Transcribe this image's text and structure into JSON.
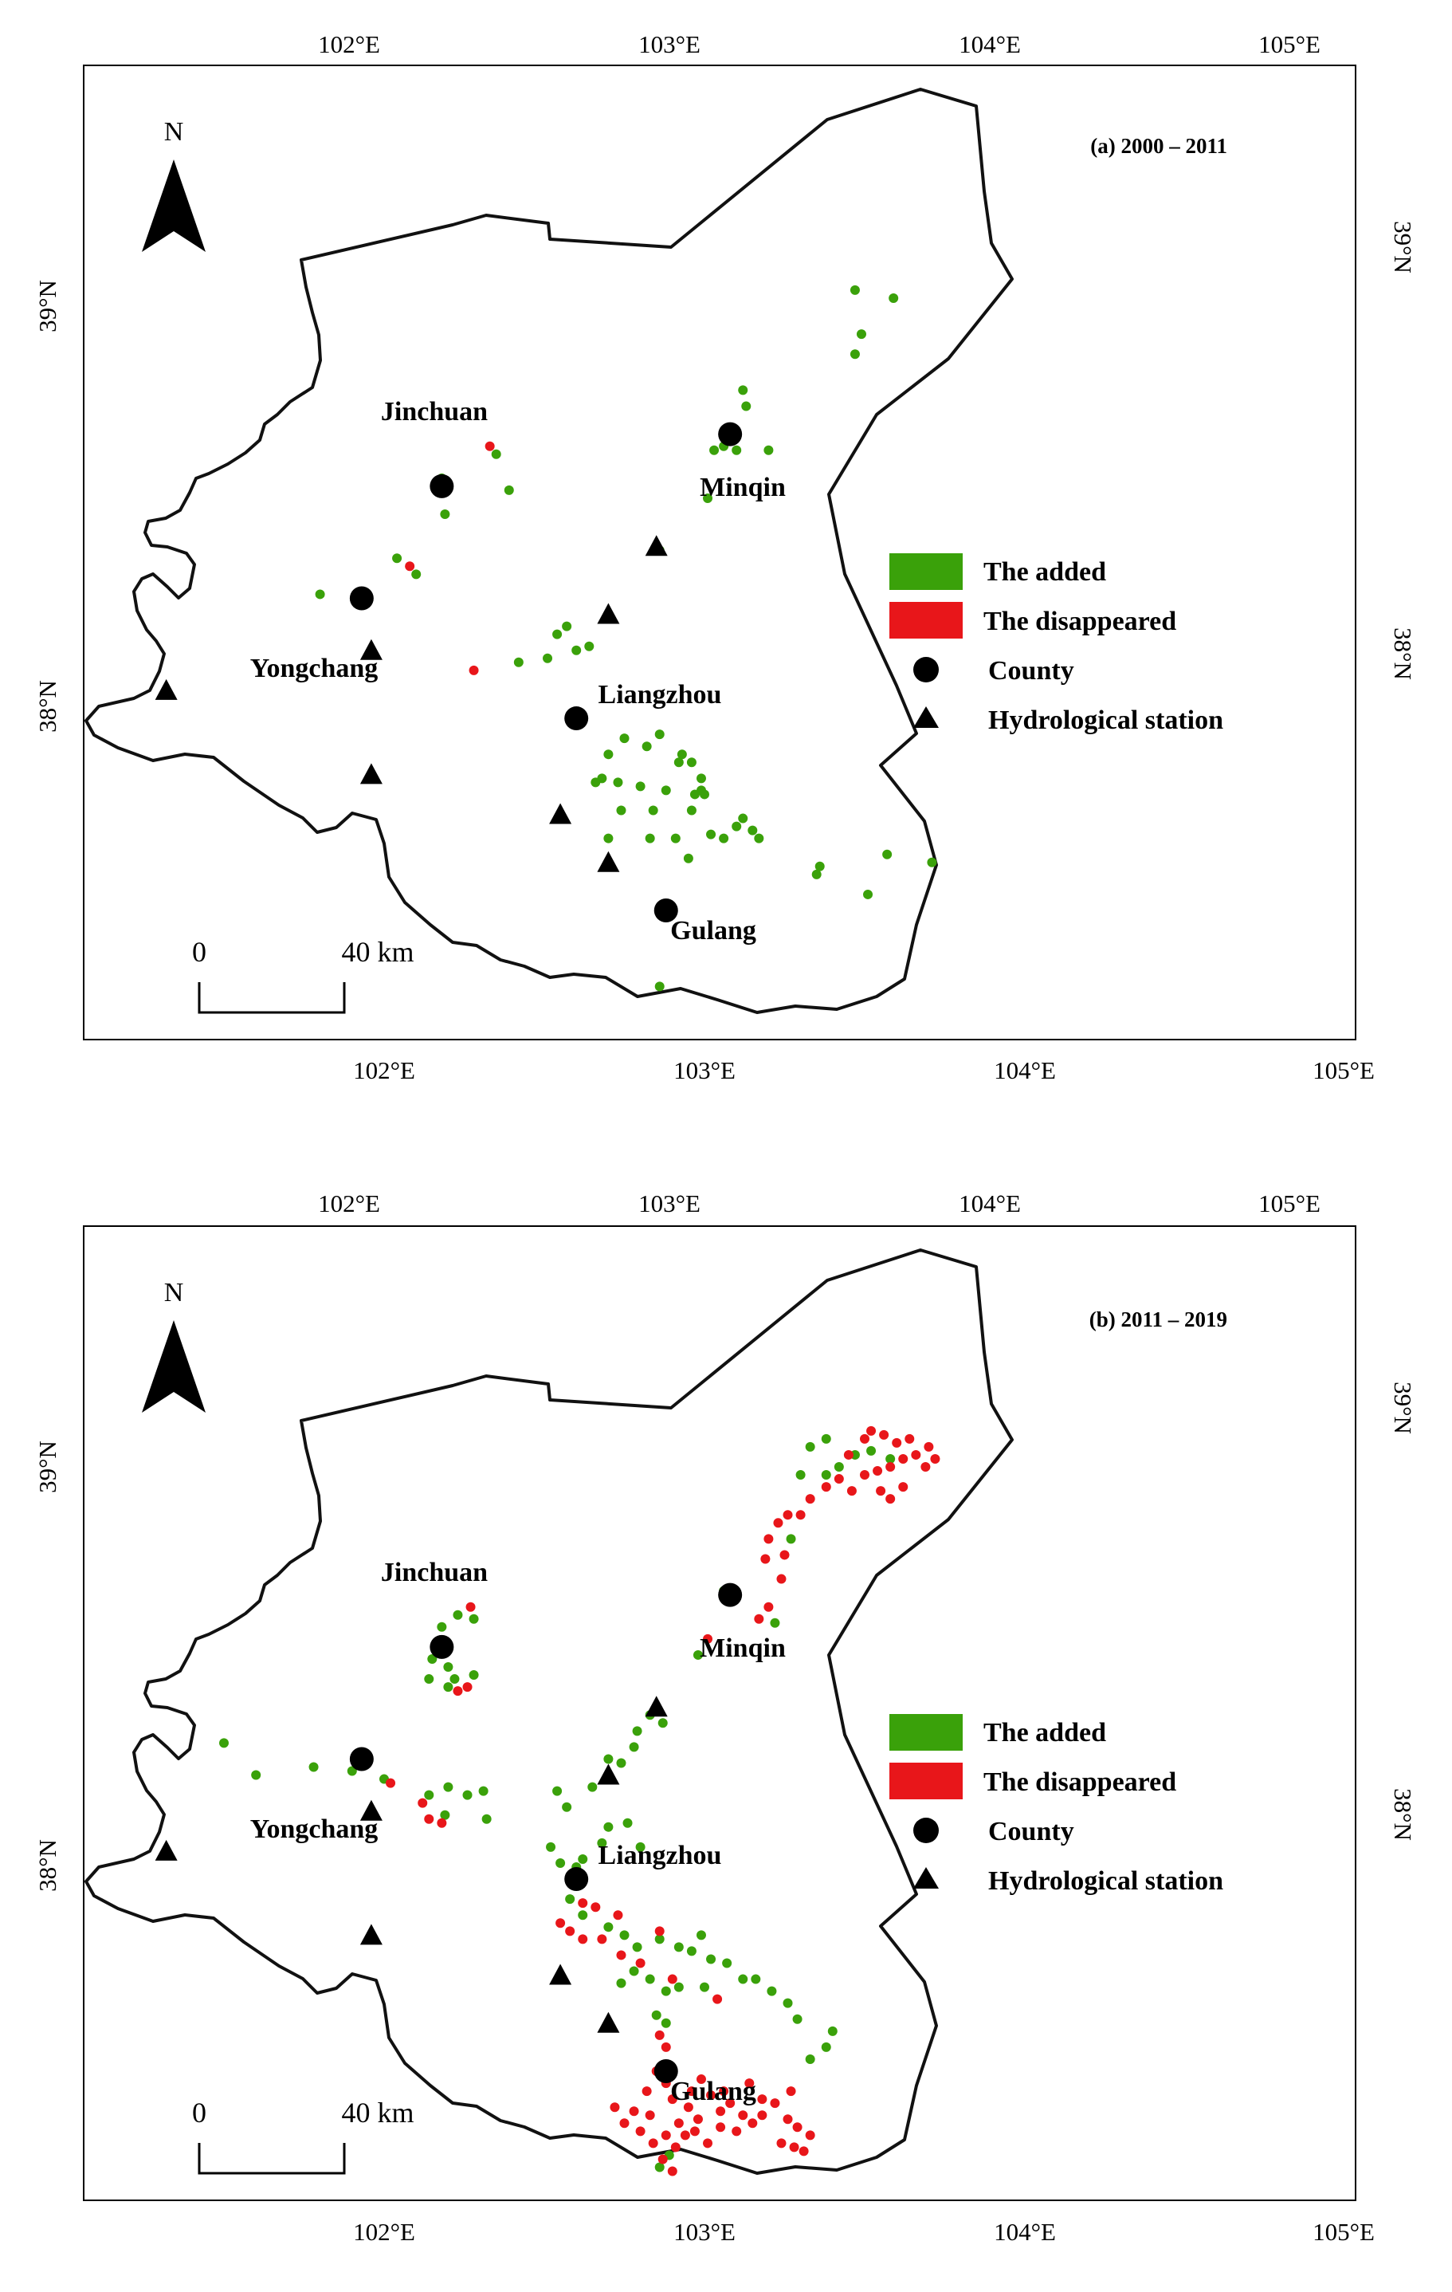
{
  "panels": [
    {
      "id": "a",
      "title": "(a) 2000 – 2011",
      "lon_ticks": [
        "102°E",
        "103°E",
        "104°E",
        "105°E"
      ],
      "lat_ticks": [
        "38°N",
        "39°N"
      ],
      "north_label": "N",
      "scale": {
        "zero": "0",
        "end": "40 km"
      },
      "legend": [
        {
          "kind": "patch",
          "color": "#3aa10a",
          "label": "The added"
        },
        {
          "kind": "patch",
          "color": "#e8161a",
          "label": "The disappeared"
        },
        {
          "kind": "circle",
          "color": "#000000",
          "label": "County"
        },
        {
          "kind": "triangle",
          "color": "#000000",
          "label": "Hydrological station"
        }
      ],
      "places": [
        {
          "name": "Jinchuan",
          "lon": 102.18,
          "lat": 38.55
        },
        {
          "name": "Minqin",
          "lon": 103.08,
          "lat": 38.68
        },
        {
          "name": "Yongchang",
          "lon": 101.93,
          "lat": 38.27
        },
        {
          "name": "Liangzhou",
          "lon": 102.6,
          "lat": 37.97
        },
        {
          "name": "Gulang",
          "lon": 102.88,
          "lat": 37.49
        }
      ],
      "stations": [
        {
          "lon": 101.32,
          "lat": 38.04
        },
        {
          "lon": 101.96,
          "lat": 38.14
        },
        {
          "lon": 101.96,
          "lat": 37.83
        },
        {
          "lon": 102.55,
          "lat": 37.73
        },
        {
          "lon": 102.7,
          "lat": 37.61
        },
        {
          "lon": 102.7,
          "lat": 38.23
        },
        {
          "lon": 102.85,
          "lat": 38.4
        }
      ],
      "added_points": [
        [
          102.18,
          38.57
        ],
        [
          102.19,
          38.48
        ],
        [
          102.35,
          38.63
        ],
        [
          102.39,
          38.54
        ],
        [
          102.1,
          38.33
        ],
        [
          102.04,
          38.37
        ],
        [
          101.8,
          38.28
        ],
        [
          102.42,
          38.11
        ],
        [
          102.51,
          38.12
        ],
        [
          102.54,
          38.18
        ],
        [
          102.6,
          38.14
        ],
        [
          102.64,
          38.15
        ],
        [
          102.57,
          38.2
        ],
        [
          102.75,
          37.92
        ],
        [
          102.7,
          37.88
        ],
        [
          102.68,
          37.82
        ],
        [
          102.73,
          37.81
        ],
        [
          102.82,
          37.9
        ],
        [
          102.86,
          37.93
        ],
        [
          102.93,
          37.88
        ],
        [
          102.96,
          37.86
        ],
        [
          102.99,
          37.82
        ],
        [
          102.99,
          37.79
        ],
        [
          102.97,
          37.78
        ],
        [
          102.8,
          37.8
        ],
        [
          102.74,
          37.74
        ],
        [
          102.84,
          37.74
        ],
        [
          102.96,
          37.74
        ],
        [
          102.91,
          37.67
        ],
        [
          102.95,
          37.62
        ],
        [
          103.02,
          37.68
        ],
        [
          103.06,
          37.67
        ],
        [
          103.1,
          37.7
        ],
        [
          103.12,
          37.72
        ],
        [
          103.15,
          37.69
        ],
        [
          103.17,
          37.67
        ],
        [
          103.0,
          37.78
        ],
        [
          102.92,
          37.86
        ],
        [
          102.88,
          37.79
        ],
        [
          102.83,
          37.67
        ],
        [
          102.7,
          37.67
        ],
        [
          102.66,
          37.81
        ],
        [
          103.35,
          37.58
        ],
        [
          103.36,
          37.6
        ],
        [
          103.51,
          37.53
        ],
        [
          103.57,
          37.63
        ],
        [
          103.71,
          37.61
        ],
        [
          102.86,
          37.3
        ],
        [
          103.03,
          38.64
        ],
        [
          103.06,
          38.65
        ],
        [
          103.1,
          38.64
        ],
        [
          103.2,
          38.64
        ],
        [
          103.13,
          38.75
        ],
        [
          103.12,
          38.79
        ],
        [
          103.01,
          38.52
        ],
        [
          102.86,
          38.39
        ],
        [
          103.47,
          38.88
        ],
        [
          103.49,
          38.93
        ],
        [
          103.47,
          39.04
        ],
        [
          103.59,
          39.02
        ]
      ],
      "disappeared_points": [
        [
          102.33,
          38.65
        ],
        [
          102.08,
          38.35
        ],
        [
          102.28,
          38.09
        ]
      ]
    },
    {
      "id": "b",
      "title": "(b) 2011 – 2019",
      "lon_ticks": [
        "102°E",
        "103°E",
        "104°E",
        "105°E"
      ],
      "lat_ticks": [
        "38°N",
        "39°N"
      ],
      "north_label": "N",
      "scale": {
        "zero": "0",
        "end": "40 km"
      },
      "legend": [
        {
          "kind": "patch",
          "color": "#3aa10a",
          "label": "The added"
        },
        {
          "kind": "patch",
          "color": "#e8161a",
          "label": "The disappeared"
        },
        {
          "kind": "circle",
          "color": "#000000",
          "label": "County"
        },
        {
          "kind": "triangle",
          "color": "#000000",
          "label": "Hydrological station"
        }
      ],
      "places": [
        {
          "name": "Jinchuan",
          "lon": 102.18,
          "lat": 38.55
        },
        {
          "name": "Minqin",
          "lon": 103.08,
          "lat": 38.68
        },
        {
          "name": "Yongchang",
          "lon": 101.93,
          "lat": 38.27
        },
        {
          "name": "Liangzhou",
          "lon": 102.6,
          "lat": 37.97
        },
        {
          "name": "Gulang",
          "lon": 102.88,
          "lat": 37.49
        }
      ],
      "stations": [
        {
          "lon": 101.32,
          "lat": 38.04
        },
        {
          "lon": 101.96,
          "lat": 38.14
        },
        {
          "lon": 101.96,
          "lat": 37.83
        },
        {
          "lon": 102.55,
          "lat": 37.73
        },
        {
          "lon": 102.7,
          "lat": 37.61
        },
        {
          "lon": 102.7,
          "lat": 38.23
        },
        {
          "lon": 102.85,
          "lat": 38.4
        }
      ],
      "added_points": [
        [
          101.5,
          38.31
        ],
        [
          101.6,
          38.23
        ],
        [
          101.78,
          38.25
        ],
        [
          101.9,
          38.24
        ],
        [
          102.0,
          38.22
        ],
        [
          102.15,
          38.52
        ],
        [
          102.18,
          38.54
        ],
        [
          102.2,
          38.5
        ],
        [
          102.22,
          38.47
        ],
        [
          102.2,
          38.45
        ],
        [
          102.14,
          38.47
        ],
        [
          102.28,
          38.48
        ],
        [
          102.23,
          38.63
        ],
        [
          102.28,
          38.62
        ],
        [
          102.18,
          38.6
        ],
        [
          102.2,
          38.2
        ],
        [
          102.26,
          38.18
        ],
        [
          102.31,
          38.19
        ],
        [
          102.14,
          38.18
        ],
        [
          102.19,
          38.13
        ],
        [
          102.32,
          38.12
        ],
        [
          102.54,
          38.19
        ],
        [
          102.57,
          38.15
        ],
        [
          102.52,
          38.05
        ],
        [
          102.55,
          38.01
        ],
        [
          102.6,
          38.0
        ],
        [
          102.62,
          38.02
        ],
        [
          102.68,
          38.06
        ],
        [
          102.7,
          38.1
        ],
        [
          102.76,
          38.11
        ],
        [
          102.8,
          38.05
        ],
        [
          102.65,
          38.2
        ],
        [
          102.7,
          38.27
        ],
        [
          102.74,
          38.26
        ],
        [
          102.78,
          38.3
        ],
        [
          102.79,
          38.34
        ],
        [
          102.83,
          38.38
        ],
        [
          102.87,
          38.36
        ],
        [
          102.58,
          37.92
        ],
        [
          102.62,
          37.88
        ],
        [
          102.7,
          37.85
        ],
        [
          102.75,
          37.83
        ],
        [
          102.79,
          37.8
        ],
        [
          102.86,
          37.82
        ],
        [
          102.92,
          37.8
        ],
        [
          102.96,
          37.79
        ],
        [
          102.99,
          37.83
        ],
        [
          103.02,
          37.77
        ],
        [
          103.07,
          37.76
        ],
        [
          103.12,
          37.72
        ],
        [
          103.16,
          37.72
        ],
        [
          103.21,
          37.69
        ],
        [
          103.26,
          37.66
        ],
        [
          103.29,
          37.62
        ],
        [
          102.78,
          37.74
        ],
        [
          102.83,
          37.72
        ],
        [
          102.88,
          37.69
        ],
        [
          102.92,
          37.7
        ],
        [
          103.0,
          37.7
        ],
        [
          102.74,
          37.71
        ],
        [
          102.85,
          37.63
        ],
        [
          102.88,
          37.61
        ],
        [
          103.33,
          37.52
        ],
        [
          103.38,
          37.55
        ],
        [
          103.4,
          37.59
        ],
        [
          102.86,
          37.25
        ],
        [
          102.89,
          37.28
        ],
        [
          103.06,
          38.69
        ],
        [
          103.09,
          38.67
        ],
        [
          102.98,
          38.53
        ],
        [
          103.22,
          38.61
        ],
        [
          103.27,
          38.82
        ],
        [
          103.38,
          38.98
        ],
        [
          103.42,
          39.0
        ],
        [
          103.47,
          39.03
        ],
        [
          103.52,
          39.04
        ],
        [
          103.58,
          39.02
        ],
        [
          103.33,
          39.05
        ],
        [
          103.38,
          39.07
        ],
        [
          103.3,
          38.98
        ]
      ],
      "disappeared_points": [
        [
          102.23,
          38.44
        ],
        [
          102.26,
          38.45
        ],
        [
          102.27,
          38.65
        ],
        [
          102.02,
          38.21
        ],
        [
          102.12,
          38.16
        ],
        [
          102.14,
          38.12
        ],
        [
          102.18,
          38.11
        ],
        [
          102.62,
          37.91
        ],
        [
          102.66,
          37.9
        ],
        [
          102.73,
          37.88
        ],
        [
          102.55,
          37.86
        ],
        [
          102.58,
          37.84
        ],
        [
          102.62,
          37.82
        ],
        [
          102.68,
          37.82
        ],
        [
          102.74,
          37.78
        ],
        [
          102.8,
          37.76
        ],
        [
          102.86,
          37.84
        ],
        [
          102.9,
          37.72
        ],
        [
          103.04,
          37.67
        ],
        [
          103.01,
          38.57
        ],
        [
          103.17,
          38.62
        ],
        [
          103.2,
          38.65
        ],
        [
          103.24,
          38.72
        ],
        [
          103.19,
          38.77
        ],
        [
          103.25,
          38.78
        ],
        [
          103.2,
          38.82
        ],
        [
          103.23,
          38.86
        ],
        [
          103.26,
          38.88
        ],
        [
          103.3,
          38.88
        ],
        [
          103.33,
          38.92
        ],
        [
          103.38,
          38.95
        ],
        [
          103.46,
          38.94
        ],
        [
          103.5,
          38.98
        ],
        [
          103.54,
          38.99
        ],
        [
          103.58,
          39.0
        ],
        [
          103.62,
          39.02
        ],
        [
          103.66,
          39.03
        ],
        [
          103.69,
          39.0
        ],
        [
          103.72,
          39.02
        ],
        [
          103.6,
          39.06
        ],
        [
          103.56,
          39.08
        ],
        [
          103.5,
          39.07
        ],
        [
          103.45,
          39.03
        ],
        [
          103.42,
          38.97
        ],
        [
          103.55,
          38.94
        ],
        [
          103.62,
          38.95
        ],
        [
          103.58,
          38.92
        ],
        [
          103.52,
          39.09
        ],
        [
          103.64,
          39.07
        ],
        [
          103.7,
          39.05
        ],
        [
          102.85,
          37.49
        ],
        [
          102.88,
          37.46
        ],
        [
          102.9,
          37.42
        ],
        [
          102.82,
          37.44
        ],
        [
          102.92,
          37.36
        ],
        [
          102.95,
          37.4
        ],
        [
          102.98,
          37.37
        ],
        [
          103.02,
          37.43
        ],
        [
          103.05,
          37.39
        ],
        [
          103.08,
          37.41
        ],
        [
          103.12,
          37.38
        ],
        [
          103.15,
          37.36
        ],
        [
          103.18,
          37.38
        ],
        [
          103.22,
          37.41
        ],
        [
          103.26,
          37.37
        ],
        [
          103.29,
          37.35
        ],
        [
          103.33,
          37.33
        ],
        [
          103.31,
          37.29
        ],
        [
          103.28,
          37.3
        ],
        [
          102.78,
          37.39
        ],
        [
          102.75,
          37.36
        ],
        [
          102.8,
          37.34
        ],
        [
          102.84,
          37.31
        ],
        [
          102.88,
          37.33
        ],
        [
          102.91,
          37.3
        ],
        [
          102.94,
          37.33
        ],
        [
          102.97,
          37.34
        ],
        [
          103.01,
          37.31
        ],
        [
          103.05,
          37.35
        ],
        [
          103.1,
          37.34
        ],
        [
          102.87,
          37.27
        ],
        [
          102.9,
          37.24
        ],
        [
          102.83,
          37.38
        ],
        [
          102.96,
          37.44
        ],
        [
          103.14,
          37.46
        ],
        [
          103.27,
          37.44
        ],
        [
          102.86,
          37.58
        ],
        [
          102.88,
          37.55
        ],
        [
          102.72,
          37.4
        ],
        [
          103.24,
          37.31
        ],
        [
          103.18,
          37.42
        ],
        [
          102.99,
          37.47
        ],
        [
          103.06,
          37.44
        ]
      ]
    }
  ]
}
